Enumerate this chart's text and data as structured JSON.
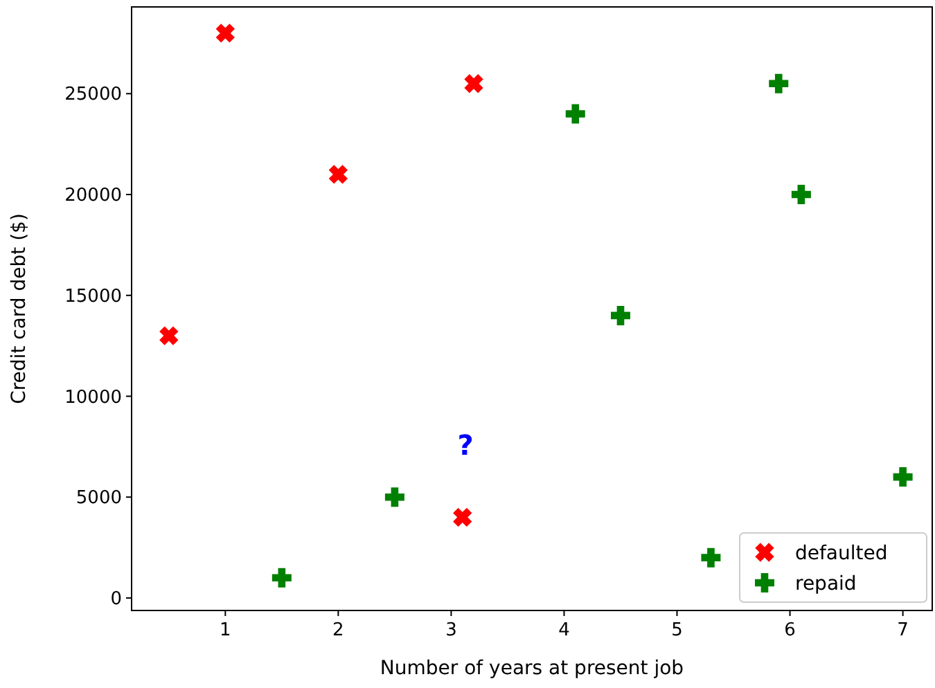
{
  "chart_data": {
    "type": "scatter",
    "xlabel": "Number of years at present job",
    "ylabel": "Credit card debt ($)",
    "xlim": [
      0.17,
      7.26
    ],
    "xticks": [
      1,
      2,
      3,
      4,
      5,
      6,
      7
    ],
    "ylim": [
      -620,
      29300
    ],
    "yticks": [
      0,
      5000,
      10000,
      15000,
      20000,
      25000
    ],
    "legend": "bottom right",
    "grid": false,
    "series": [
      {
        "name": "defaulted",
        "color": "#ff0000",
        "marker": "cross",
        "x": [
          0.5,
          1,
          2,
          3.2,
          3.1
        ],
        "values": [
          13000,
          28000,
          21000,
          25500,
          4000
        ]
      },
      {
        "name": "repaid",
        "color": "#008000",
        "marker": "plus",
        "x": [
          1.5,
          2.5,
          4.1,
          4.5,
          5.3,
          5.9,
          6.1,
          7
        ],
        "values": [
          1000,
          5000,
          24000,
          14000,
          2000,
          25500,
          20000,
          6000
        ]
      }
    ],
    "annotations": [
      "?"
    ]
  }
}
